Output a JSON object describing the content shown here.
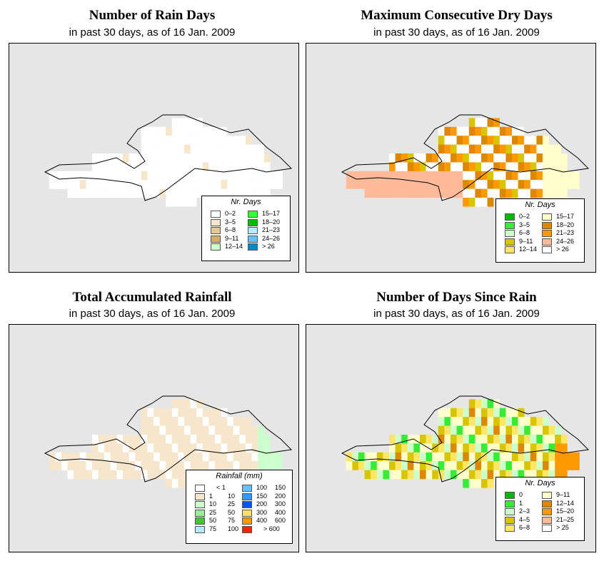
{
  "panels": [
    {
      "title": "Number of Rain Days",
      "subtitle": "in past 30 days, as of  16 Jan. 2009",
      "legend": {
        "title": "Nr. Days",
        "items": [
          {
            "label": "0–2",
            "color": "#ffffff"
          },
          {
            "label": "3–5",
            "color": "#f5e6cc"
          },
          {
            "label": "6–8",
            "color": "#e2c996"
          },
          {
            "label": "9–11",
            "color": "#d4b062"
          },
          {
            "label": "12–14",
            "color": "#ccffcc"
          },
          {
            "label": "15–17",
            "color": "#33ff33"
          },
          {
            "label": "18–20",
            "color": "#00bb00"
          },
          {
            "label": "21–23",
            "color": "#b3ecff"
          },
          {
            "label": "24–26",
            "color": "#66c2ff"
          },
          {
            "label": "> 26",
            "color": "#0088cc"
          }
        ]
      }
    },
    {
      "title": "Maximum Consecutive Dry Days",
      "subtitle": "in past 30 days, as of  16 Jan. 2009",
      "legend": {
        "title": "Nr. Days",
        "items": [
          {
            "label": "0–2",
            "color": "#00bb00"
          },
          {
            "label": "3–5",
            "color": "#33ee33"
          },
          {
            "label": "6–8",
            "color": "#ccffcc"
          },
          {
            "label": "9–11",
            "color": "#d9c400"
          },
          {
            "label": "12–14",
            "color": "#ffe666"
          },
          {
            "label": "15–17",
            "color": "#ffffcc"
          },
          {
            "label": "18–20",
            "color": "#dd8800"
          },
          {
            "label": "21–23",
            "color": "#ff9900"
          },
          {
            "label": "24–26",
            "color": "#ffbb99"
          },
          {
            "label": "> 26",
            "color": "#ffffff"
          }
        ]
      }
    },
    {
      "title": "Total Accumulated Rainfall",
      "subtitle": "in past 30 days, as of  16 Jan. 2009",
      "legend": {
        "title": "Rainfall (mm)",
        "items": [
          {
            "a": "",
            "b": "< 1",
            "color": "#ffffff"
          },
          {
            "a": "1",
            "b": "10",
            "color": "#f5e6cc"
          },
          {
            "a": "10",
            "b": "25",
            "color": "#ccffcc"
          },
          {
            "a": "25",
            "b": "50",
            "color": "#99ee99"
          },
          {
            "a": "50",
            "b": "75",
            "color": "#33cc33"
          },
          {
            "a": "75",
            "b": "100",
            "color": "#b3ecff"
          },
          {
            "a": "100",
            "b": "150",
            "color": "#66c2ff"
          },
          {
            "a": "150",
            "b": "200",
            "color": "#3399ff"
          },
          {
            "a": "200",
            "b": "300",
            "color": "#0055ee"
          },
          {
            "a": "300",
            "b": "400",
            "color": "#ffe066"
          },
          {
            "a": "400",
            "b": "600",
            "color": "#ff9900"
          },
          {
            "a": "",
            "b": "> 600",
            "color": "#ff2200"
          }
        ]
      }
    },
    {
      "title": "Number of Days Since Rain",
      "subtitle": "in past 30 days, as of  16 Jan. 2009",
      "legend": {
        "title": "Nr. Days",
        "items": [
          {
            "label": "0",
            "color": "#00bb00"
          },
          {
            "label": "1",
            "color": "#33ee33"
          },
          {
            "label": "2–3",
            "color": "#ccffcc"
          },
          {
            "label": "4–5",
            "color": "#d9c400"
          },
          {
            "label": "6–8",
            "color": "#ffe666"
          },
          {
            "label": "9–11",
            "color": "#ffffcc"
          },
          {
            "label": "12–14",
            "color": "#dd8800"
          },
          {
            "label": "15–20",
            "color": "#ff9900"
          },
          {
            "label": "21–25",
            "color": "#ffbb99"
          },
          {
            "label": "> 25",
            "color": "#ffffff"
          }
        ]
      }
    }
  ]
}
